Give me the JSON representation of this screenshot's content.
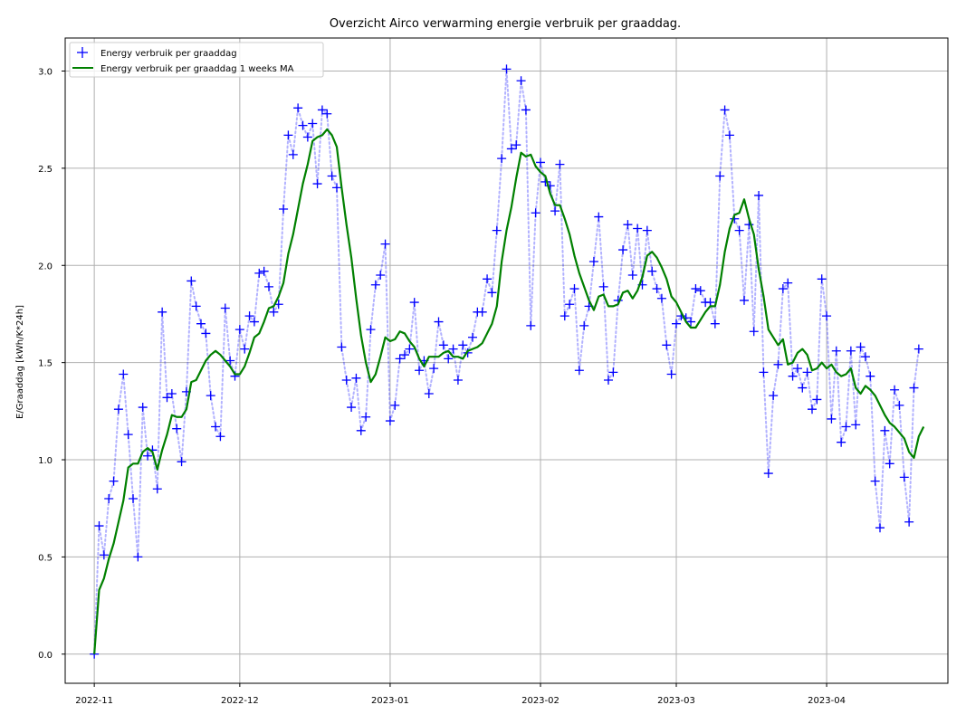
{
  "chart_data": {
    "type": "line",
    "title": "Overzicht Airco verwarming energie verbruik per graaddag.",
    "xlabel": "",
    "ylabel": "E/Graaddag [kWh/K*24h]",
    "ylim": [
      -0.15,
      3.17
    ],
    "xlim": [
      "2022-10-26",
      "2023-04-26"
    ],
    "yticks": [
      0.0,
      0.5,
      1.0,
      1.5,
      2.0,
      2.5,
      3.0
    ],
    "ytick_labels": [
      "0.0",
      "0.5",
      "1.0",
      "1.5",
      "2.0",
      "2.5",
      "3.0"
    ],
    "xticks": [
      "2022-11-01",
      "2022-12-01",
      "2023-01-01",
      "2023-02-01",
      "2023-03-01",
      "2023-04-01"
    ],
    "xtick_labels": [
      "2022-11",
      "2022-12",
      "2023-01",
      "2023-02",
      "2023-03",
      "2023-04"
    ],
    "grid": true,
    "legend_position": "top-left",
    "x_start": "2022-11-01",
    "x_step_days": 1,
    "series": [
      {
        "name": "Energy verbruik per graaddag",
        "color": "#0000ff",
        "marker": "+",
        "line_style": "dotted",
        "values": [
          0.0,
          0.66,
          0.51,
          0.8,
          0.89,
          1.26,
          1.44,
          1.13,
          0.8,
          0.5,
          1.27,
          1.02,
          1.05,
          0.85,
          1.76,
          1.32,
          1.34,
          1.16,
          0.99,
          1.35,
          1.92,
          1.79,
          1.7,
          1.65,
          1.33,
          1.17,
          1.12,
          1.78,
          1.51,
          1.43,
          1.67,
          1.57,
          1.74,
          1.71,
          1.96,
          1.97,
          1.89,
          1.76,
          1.8,
          2.29,
          2.67,
          2.57,
          2.81,
          2.72,
          2.66,
          2.73,
          2.42,
          2.8,
          2.78,
          2.46,
          2.4,
          1.58,
          1.41,
          1.27,
          1.42,
          1.15,
          1.22,
          1.67,
          1.9,
          1.95,
          2.11,
          1.2,
          1.28,
          1.52,
          1.54,
          1.57,
          1.81,
          1.46,
          1.51,
          1.34,
          1.47,
          1.71,
          1.59,
          1.52,
          1.57,
          1.41,
          1.59,
          1.55,
          1.63,
          1.76,
          1.76,
          1.93,
          1.86,
          2.18,
          2.55,
          3.01,
          2.6,
          2.62,
          2.95,
          2.8,
          1.69,
          2.27,
          2.53,
          2.43,
          2.41,
          2.28,
          2.52,
          1.74,
          1.8,
          1.88,
          1.46,
          1.69,
          1.79,
          2.02,
          2.25,
          1.89,
          1.41,
          1.45,
          1.82,
          2.08,
          2.21,
          1.95,
          2.19,
          1.9,
          2.18,
          1.97,
          1.88,
          1.83,
          1.59,
          1.44,
          1.7,
          1.74,
          1.73,
          1.71,
          1.88,
          1.87,
          1.81,
          1.81,
          1.7,
          2.46,
          2.8,
          2.67,
          2.24,
          2.18,
          1.82,
          2.21,
          1.66,
          2.36,
          1.45,
          0.93,
          1.33,
          1.49,
          1.88,
          1.91,
          1.43,
          1.47,
          1.37,
          1.45,
          1.26,
          1.31,
          1.93,
          1.74,
          1.21,
          1.56,
          1.09,
          1.17,
          1.56,
          1.18,
          1.58,
          1.53,
          1.43,
          0.89,
          0.65,
          1.15,
          0.98,
          1.36,
          1.28,
          0.91,
          0.68,
          1.37,
          1.57
        ]
      },
      {
        "name": "Energy verbruik per graaddag 1 weeks MA",
        "color": "#008000",
        "line_style": "solid",
        "values": [
          0.0,
          0.33,
          0.39,
          0.49,
          0.57,
          0.68,
          0.79,
          0.96,
          0.98,
          0.98,
          1.04,
          1.06,
          1.04,
          0.95,
          1.05,
          1.13,
          1.23,
          1.22,
          1.22,
          1.26,
          1.4,
          1.41,
          1.46,
          1.51,
          1.54,
          1.56,
          1.54,
          1.51,
          1.48,
          1.44,
          1.44,
          1.48,
          1.55,
          1.63,
          1.65,
          1.71,
          1.78,
          1.79,
          1.84,
          1.91,
          2.06,
          2.16,
          2.29,
          2.42,
          2.52,
          2.64,
          2.66,
          2.67,
          2.7,
          2.67,
          2.61,
          2.4,
          2.21,
          2.04,
          1.83,
          1.64,
          1.5,
          1.4,
          1.44,
          1.53,
          1.63,
          1.61,
          1.62,
          1.66,
          1.65,
          1.61,
          1.58,
          1.52,
          1.48,
          1.53,
          1.53,
          1.53,
          1.55,
          1.56,
          1.53,
          1.53,
          1.52,
          1.56,
          1.57,
          1.58,
          1.6,
          1.65,
          1.7,
          1.79,
          2.02,
          2.18,
          2.3,
          2.45,
          2.58,
          2.56,
          2.57,
          2.51,
          2.48,
          2.46,
          2.37,
          2.31,
          2.31,
          2.24,
          2.16,
          2.05,
          1.96,
          1.89,
          1.82,
          1.77,
          1.84,
          1.85,
          1.79,
          1.79,
          1.8,
          1.86,
          1.87,
          1.83,
          1.87,
          1.94,
          2.05,
          2.07,
          2.04,
          1.99,
          1.93,
          1.84,
          1.81,
          1.76,
          1.71,
          1.68,
          1.68,
          1.72,
          1.76,
          1.79,
          1.79,
          1.9,
          2.07,
          2.19,
          2.26,
          2.27,
          2.34,
          2.24,
          2.16,
          1.98,
          1.84,
          1.67,
          1.63,
          1.59,
          1.62,
          1.49,
          1.5,
          1.55,
          1.57,
          1.54,
          1.46,
          1.47,
          1.5,
          1.47,
          1.49,
          1.45,
          1.43,
          1.44,
          1.47,
          1.37,
          1.34,
          1.38,
          1.36,
          1.33,
          1.28,
          1.23,
          1.19,
          1.17,
          1.14,
          1.11,
          1.04,
          1.01,
          1.12,
          1.17
        ]
      }
    ]
  }
}
